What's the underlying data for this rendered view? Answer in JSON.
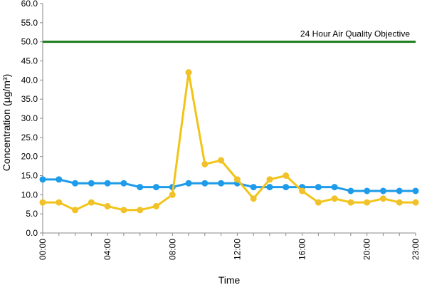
{
  "chart_data": {
    "type": "line",
    "xlabel": "Time",
    "ylabel": "Concentration (µg/m³)",
    "ylim": [
      0,
      60
    ],
    "y_tick_step": 5,
    "y_tick_decimals": 1,
    "grid": false,
    "x": [
      "00:00",
      "01:00",
      "02:00",
      "03:00",
      "04:00",
      "05:00",
      "06:00",
      "07:00",
      "08:00",
      "09:00",
      "10:00",
      "11:00",
      "12:00",
      "13:00",
      "14:00",
      "15:00",
      "16:00",
      "17:00",
      "18:00",
      "19:00",
      "20:00",
      "21:00",
      "22:00",
      "23:00"
    ],
    "x_tick_labels": [
      "00:00",
      "04:00",
      "08:00",
      "12:00",
      "16:00",
      "20:00",
      "23:00"
    ],
    "series": [
      {
        "color": "#1e9be9",
        "marker_color": "#1e9be9",
        "values": [
          14,
          14,
          13,
          13,
          13,
          13,
          12,
          12,
          12,
          13,
          13,
          13,
          13,
          12,
          12,
          12,
          12,
          12,
          12,
          11,
          11,
          11,
          11,
          11
        ]
      },
      {
        "color": "#f2c418",
        "marker_color": "#f0c030",
        "values": [
          8,
          8,
          6,
          8,
          7,
          6,
          6,
          7,
          10,
          42,
          18,
          19,
          14,
          9,
          14,
          15,
          11,
          8,
          9,
          8,
          8,
          9,
          8,
          8
        ]
      }
    ],
    "reference_lines": [
      {
        "value": 50,
        "label": "24 Hour Air Quality Objective",
        "color": "#1a7a1a"
      }
    ]
  }
}
